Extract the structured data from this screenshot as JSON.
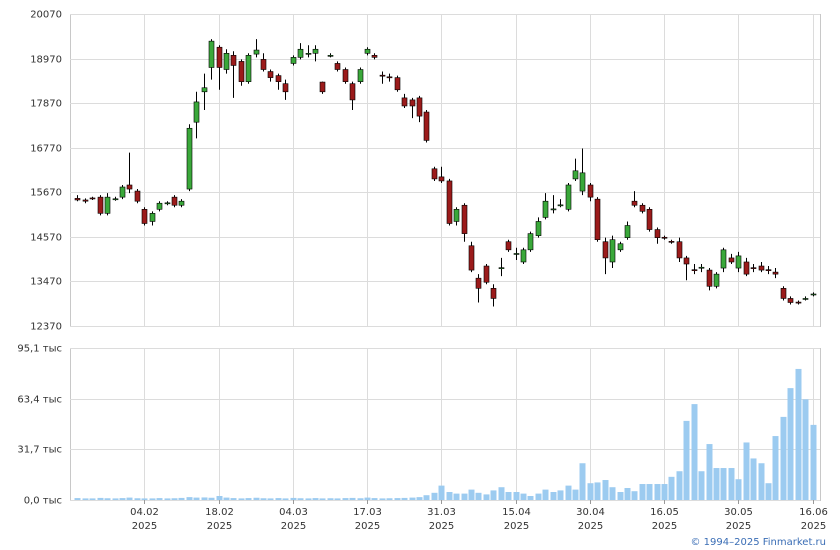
{
  "chart_data": {
    "type": "candlestick",
    "ylim": [
      12370,
      20070
    ],
    "yticks": [
      12370,
      13470,
      14570,
      15670,
      16770,
      17870,
      18970,
      20070
    ],
    "volume_ylim": [
      0,
      95.1
    ],
    "volume_yticks": [
      {
        "value": 0,
        "label": "0,0 тыс"
      },
      {
        "value": 31.7,
        "label": "31,7 тыс"
      },
      {
        "value": 63.4,
        "label": "63,4 тыс"
      },
      {
        "value": 95.1,
        "label": "95,1 тыс"
      }
    ],
    "xlim": [
      -1,
      100
    ],
    "xticks": [
      {
        "value": 9,
        "label": "04.02"
      },
      {
        "value": 19,
        "label": "18.02"
      },
      {
        "value": 29,
        "label": "04.03"
      },
      {
        "value": 39,
        "label": "17.03"
      },
      {
        "value": 49,
        "label": "31.03"
      },
      {
        "value": 59,
        "label": "15.04"
      },
      {
        "value": 69,
        "label": "30.04"
      },
      {
        "value": 79,
        "label": "16.05"
      },
      {
        "value": 89,
        "label": "30.05"
      },
      {
        "value": 99,
        "label": "16.06"
      }
    ],
    "year": "2025",
    "grid": true,
    "up_color": "#3aa83a",
    "down_color": "#9b1b1b",
    "volume_color": "#9ccbf0",
    "credit": "© 1994–2025 Finmarket.ru",
    "open": [
      15520,
      15480,
      15530,
      15550,
      15150,
      15500,
      15550,
      15850,
      15700,
      15250,
      14950,
      15250,
      15400,
      15550,
      15350,
      15750,
      17400,
      18150,
      18750,
      19250,
      18700,
      19050,
      18900,
      18400,
      19080,
      18950,
      18650,
      18550,
      18350,
      18850,
      19000,
      19080,
      19100,
      18390,
      19030,
      18850,
      18700,
      18350,
      18400,
      19100,
      19050,
      18560,
      18520,
      18500,
      18000,
      17950,
      18000,
      17650,
      16250,
      16050,
      15950,
      14950,
      15350,
      14350,
      13550,
      13850,
      13300,
      13790,
      14450,
      14140,
      13950,
      14250,
      14600,
      15050,
      15250,
      15340,
      15250,
      16000,
      15700,
      15850,
      15500,
      14450,
      13950,
      14250,
      14550,
      15450,
      15350,
      15250,
      14750,
      14560,
      14460,
      14450,
      14050,
      13760,
      13800,
      13750,
      13350,
      13800,
      14050,
      13800,
      13950,
      13810,
      13850,
      13760,
      13700,
      13300,
      13050,
      12960,
      13030,
      13140
    ],
    "high": [
      15600,
      15520,
      15560,
      15600,
      15650,
      15560,
      15850,
      16650,
      15750,
      15300,
      15200,
      15450,
      15450,
      15600,
      15500,
      17350,
      18150,
      18600,
      19450,
      19300,
      19200,
      19150,
      18950,
      19100,
      19450,
      19100,
      18700,
      18600,
      18450,
      19050,
      19350,
      19300,
      19300,
      18400,
      19100,
      18900,
      18750,
      18400,
      18750,
      19250,
      19100,
      18650,
      18600,
      18550,
      18100,
      18000,
      18050,
      17700,
      16300,
      16300,
      16000,
      15300,
      15400,
      14450,
      13650,
      13900,
      13400,
      14050,
      14500,
      14300,
      14300,
      14700,
      15050,
      15650,
      15600,
      15500,
      15900,
      16500,
      16750,
      15900,
      15550,
      14550,
      14600,
      14450,
      14950,
      15700,
      15400,
      15300,
      14800,
      14600,
      14500,
      14550,
      14100,
      13900,
      13900,
      13800,
      13700,
      14300,
      14150,
      14200,
      14050,
      13900,
      13950,
      13850,
      13800,
      13350,
      13100,
      13000,
      13100,
      13200
    ],
    "low": [
      15450,
      15400,
      15480,
      15100,
      15100,
      15460,
      15500,
      15650,
      15400,
      14850,
      14850,
      15200,
      15350,
      15300,
      15300,
      15700,
      17000,
      17700,
      18450,
      18200,
      18600,
      18000,
      18300,
      18350,
      19000,
      18650,
      18400,
      18200,
      17950,
      18800,
      18950,
      19000,
      18900,
      18100,
      19000,
      18650,
      18350,
      17700,
      18350,
      19050,
      18950,
      18350,
      18400,
      18150,
      17750,
      17500,
      17400,
      16900,
      15950,
      15900,
      14850,
      14850,
      14450,
      13700,
      12950,
      13400,
      12850,
      13600,
      14200,
      14000,
      13900,
      14200,
      14550,
      15000,
      15150,
      15300,
      15200,
      15950,
      15600,
      15450,
      14450,
      13650,
      13800,
      14200,
      14500,
      15300,
      15150,
      14700,
      14400,
      14500,
      14400,
      13950,
      13500,
      13650,
      13700,
      13250,
      13300,
      13700,
      13900,
      13700,
      13600,
      13700,
      13700,
      13650,
      13550,
      13000,
      12900,
      12900,
      13000,
      13100
    ],
    "close": [
      15480,
      15450,
      15520,
      15150,
      15550,
      15510,
      15800,
      15750,
      15450,
      14900,
      15150,
      15400,
      15410,
      15350,
      15450,
      17250,
      17900,
      18250,
      19400,
      18750,
      19100,
      18800,
      18400,
      19050,
      19180,
      18700,
      18500,
      18400,
      18150,
      19000,
      19200,
      19100,
      19200,
      18150,
      19050,
      18700,
      18400,
      17950,
      18700,
      19200,
      19000,
      18540,
      18510,
      18200,
      17800,
      17800,
      17550,
      16950,
      16000,
      15950,
      14900,
      15250,
      14650,
      13750,
      13300,
      13450,
      13050,
      13810,
      14250,
      14160,
      14250,
      14650,
      14950,
      15450,
      15260,
      15360,
      15850,
      16200,
      16150,
      15550,
      14500,
      14050,
      14500,
      14400,
      14850,
      15350,
      15200,
      14750,
      14550,
      14540,
      14440,
      14050,
      13900,
      13740,
      13820,
      13350,
      13650,
      14250,
      13950,
      14100,
      13650,
      13790,
      13750,
      13740,
      13650,
      13050,
      12950,
      12940,
      13050,
      13160
    ],
    "volume": [
      1.2,
      1.0,
      1.0,
      1.3,
      1.1,
      1.0,
      1.2,
      1.5,
      1.1,
      1.0,
      1.0,
      1.2,
      1.0,
      1.1,
      1.3,
      1.8,
      1.5,
      1.6,
      1.4,
      2.5,
      1.5,
      1.2,
      1.0,
      1.2,
      1.4,
      1.1,
      1.0,
      1.2,
      1.0,
      1.3,
      1.1,
      1.0,
      1.2,
      1.0,
      1.1,
      1.0,
      1.2,
      1.3,
      1.1,
      1.5,
      1.2,
      1.0,
      1.1,
      1.2,
      1.3,
      1.5,
      1.8,
      3.0,
      4.5,
      9.0,
      5.0,
      4.0,
      4.0,
      6.5,
      4.5,
      3.5,
      6.0,
      8.0,
      5.0,
      5.0,
      4.0,
      2.5,
      4.0,
      6.5,
      5.0,
      6.0,
      9.0,
      6.5,
      23.0,
      10.5,
      11.0,
      12.5,
      8.0,
      5.0,
      7.5,
      5.5,
      10.0,
      10.0,
      10.0,
      10.0,
      14.5,
      18.0,
      49.5,
      60.0,
      18.0,
      35.0,
      20.0,
      20.0,
      20.0,
      13.0,
      36.0,
      26.0,
      23.0,
      10.5,
      40.0,
      52.0,
      70.0,
      82.0,
      63.0,
      47.0
    ]
  }
}
